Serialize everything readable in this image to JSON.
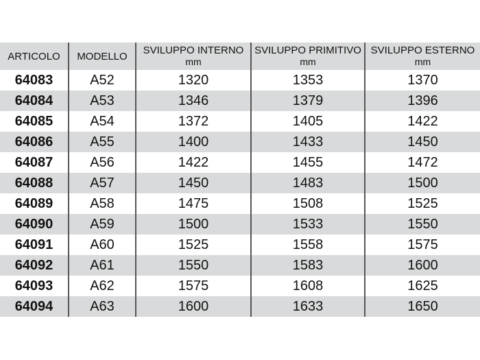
{
  "headers": [
    {
      "label": "ARTICOLO",
      "unit": ""
    },
    {
      "label": "MODELLO",
      "unit": ""
    },
    {
      "label": "SVILUPPO INTERNO",
      "unit": "mm"
    },
    {
      "label": "SVILUPPO PRIMITIVO",
      "unit": "mm"
    },
    {
      "label": "SVILUPPO ESTERNO",
      "unit": "mm"
    }
  ],
  "rows": [
    [
      "64083",
      "A52",
      "1320",
      "1353",
      "1370"
    ],
    [
      "64084",
      "A53",
      "1346",
      "1379",
      "1396"
    ],
    [
      "64085",
      "A54",
      "1372",
      "1405",
      "1422"
    ],
    [
      "64086",
      "A55",
      "1400",
      "1433",
      "1450"
    ],
    [
      "64087",
      "A56",
      "1422",
      "1455",
      "1472"
    ],
    [
      "64088",
      "A57",
      "1450",
      "1483",
      "1500"
    ],
    [
      "64089",
      "A58",
      "1475",
      "1508",
      "1525"
    ],
    [
      "64090",
      "A59",
      "1500",
      "1533",
      "1550"
    ],
    [
      "64091",
      "A60",
      "1525",
      "1558",
      "1575"
    ],
    [
      "64092",
      "A61",
      "1550",
      "1583",
      "1600"
    ],
    [
      "64093",
      "A62",
      "1575",
      "1608",
      "1625"
    ],
    [
      "64094",
      "A63",
      "1600",
      "1633",
      "1650"
    ]
  ],
  "colors": {
    "stripe": "#d9dadb",
    "border": "#555555"
  }
}
